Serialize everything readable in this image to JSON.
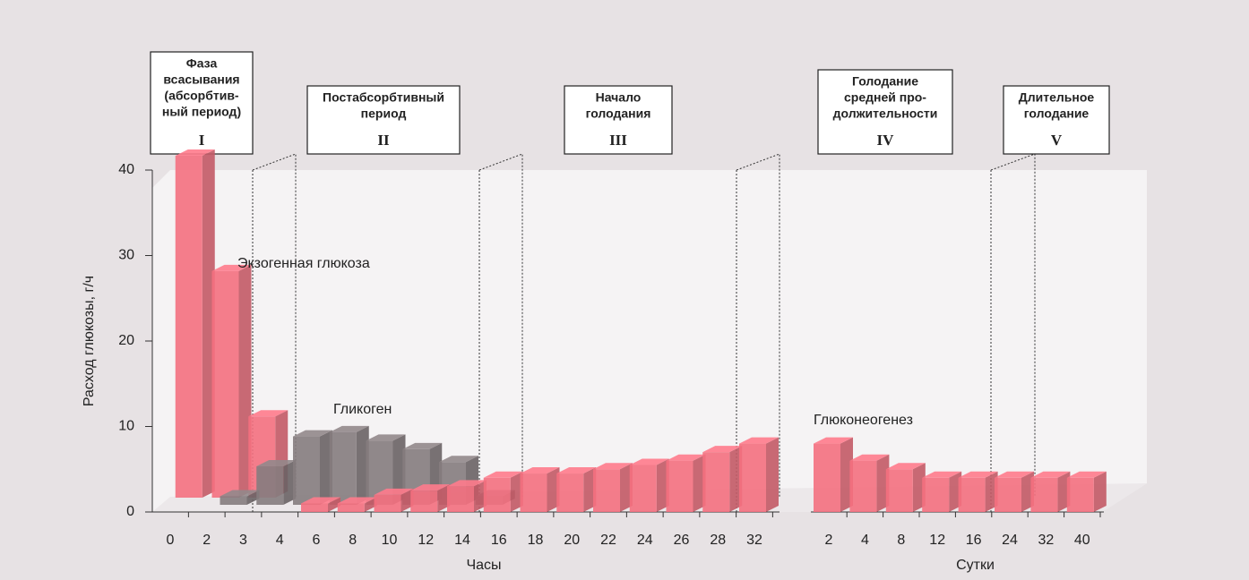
{
  "chart_data": [
    {
      "type": "bar3d",
      "ylabel": "Расход глюкозы, г/ч",
      "xlabel": "Часы",
      "ylim": [
        0,
        40
      ],
      "yticks": [
        0,
        10,
        20,
        30,
        40
      ],
      "categories": [
        "0",
        "2",
        "3",
        "4",
        "6",
        "8",
        "10",
        "12",
        "14",
        "16",
        "18",
        "20",
        "22",
        "24",
        "26",
        "28",
        "32"
      ],
      "series": [
        {
          "name": "Экзогенная глюкоза",
          "color": "#f4707f",
          "values": [
            null,
            40,
            26.5,
            9.5,
            null,
            null,
            null,
            null,
            null,
            null,
            null,
            null,
            null,
            null,
            null,
            null,
            null
          ]
        },
        {
          "name": "Гликоген",
          "color": "#857c7e",
          "values": [
            null,
            null,
            1,
            4.5,
            8,
            8.5,
            7.5,
            6.5,
            5,
            1,
            null,
            null,
            null,
            null,
            null,
            null,
            null
          ]
        },
        {
          "color": "#f4707f",
          "values": [
            null,
            null,
            null,
            null,
            1,
            1,
            2,
            2.5,
            3,
            4,
            4.5,
            4.5,
            5,
            5.5,
            6,
            7,
            8
          ]
        }
      ]
    },
    {
      "type": "bar3d",
      "xlabel": "Сутки",
      "ylim": [
        0,
        40
      ],
      "categories": [
        "2",
        "4",
        "8",
        "12",
        "16",
        "24",
        "32",
        "40"
      ],
      "series": [
        {
          "name": "Глюконеогенез",
          "color": "#f4707f",
          "values": [
            8,
            6,
            5,
            4,
            4,
            4,
            4,
            4
          ]
        }
      ]
    }
  ],
  "phases": [
    {
      "lines": [
        "Фаза",
        "всасывания",
        "(абсорбтив-",
        "ный период)"
      ],
      "numeral": "I"
    },
    {
      "lines": [
        "Постабсорбтивный",
        "период"
      ],
      "numeral": "II"
    },
    {
      "lines": [
        "Начало",
        "голодания"
      ],
      "numeral": "III"
    },
    {
      "lines": [
        "Голодание",
        "средней про-",
        "должительности"
      ],
      "numeral": "IV"
    },
    {
      "lines": [
        "Длительное",
        "голодание"
      ],
      "numeral": "V"
    }
  ]
}
